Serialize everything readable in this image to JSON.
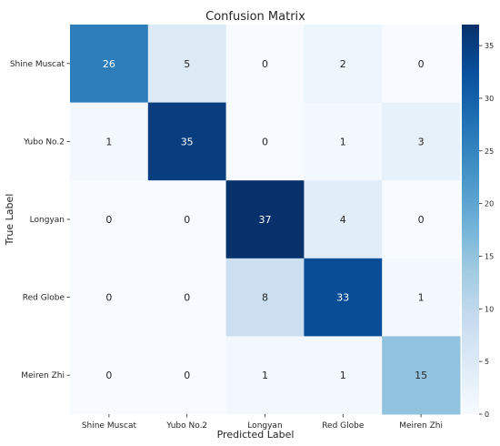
{
  "chart_data": {
    "type": "heatmap",
    "title": "Confusion Matrix",
    "xlabel": "Predicted Label",
    "ylabel": "True Label",
    "x_categories": [
      "Shine Muscat",
      "Yubo No.2",
      "Longyan",
      "Red Globe",
      "Meiren Zhi"
    ],
    "y_categories": [
      "Shine Muscat",
      "Yubo No.2",
      "Longyan",
      "Red Globe",
      "Meiren Zhi"
    ],
    "matrix": [
      [
        26,
        5,
        0,
        2,
        0
      ],
      [
        1,
        35,
        0,
        1,
        3
      ],
      [
        0,
        0,
        37,
        4,
        0
      ],
      [
        0,
        0,
        8,
        33,
        1
      ],
      [
        0,
        0,
        1,
        1,
        15
      ]
    ],
    "colormap": "Blues",
    "colorbar": {
      "range": [
        0,
        37
      ],
      "ticks": [
        "0",
        "5",
        "10",
        "15",
        "20",
        "25",
        "30",
        "35"
      ]
    },
    "cell_text_dark": "#262626",
    "cell_text_light": "#ffffff"
  }
}
